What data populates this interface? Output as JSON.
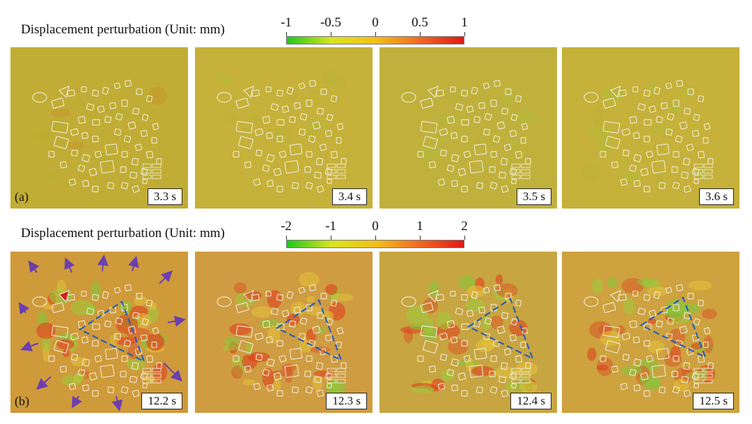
{
  "rows": [
    {
      "label": "Displacement perturbation (Unit: mm)",
      "ticks": [
        "-1",
        "-0.5",
        "0",
        "0.5",
        "1"
      ],
      "colorbar": [
        "#1fc81f",
        "#d8e41e",
        "#f3c019",
        "#ef6a22",
        "#e01818"
      ],
      "panel_label": "(a)",
      "times": [
        "3.3 s",
        "3.4 s",
        "3.5 s",
        "3.6 s"
      ],
      "bg": [
        "#c1ad35",
        "#c6b13a",
        "#c0b13c",
        "#c6b13a"
      ]
    },
    {
      "label": "Displacement perturbation (Unit: mm)",
      "ticks": [
        "-2",
        "-1",
        "0",
        "1",
        "2"
      ],
      "colorbar": [
        "#1fc81f",
        "#d8e41e",
        "#f3c019",
        "#ef6a22",
        "#e01818"
      ],
      "panel_label": "(b)",
      "times": [
        "12.2 s",
        "12.3 s",
        "12.4 s",
        "12.5 s"
      ],
      "bg": [
        "#cf9a3a",
        "#cf9c42",
        "#c7a541",
        "#cda23f"
      ]
    }
  ],
  "colors": {
    "building_outline": "#f2f2e6",
    "triangle": "#2a5fb8",
    "arrow": "#6b3fb0"
  }
}
